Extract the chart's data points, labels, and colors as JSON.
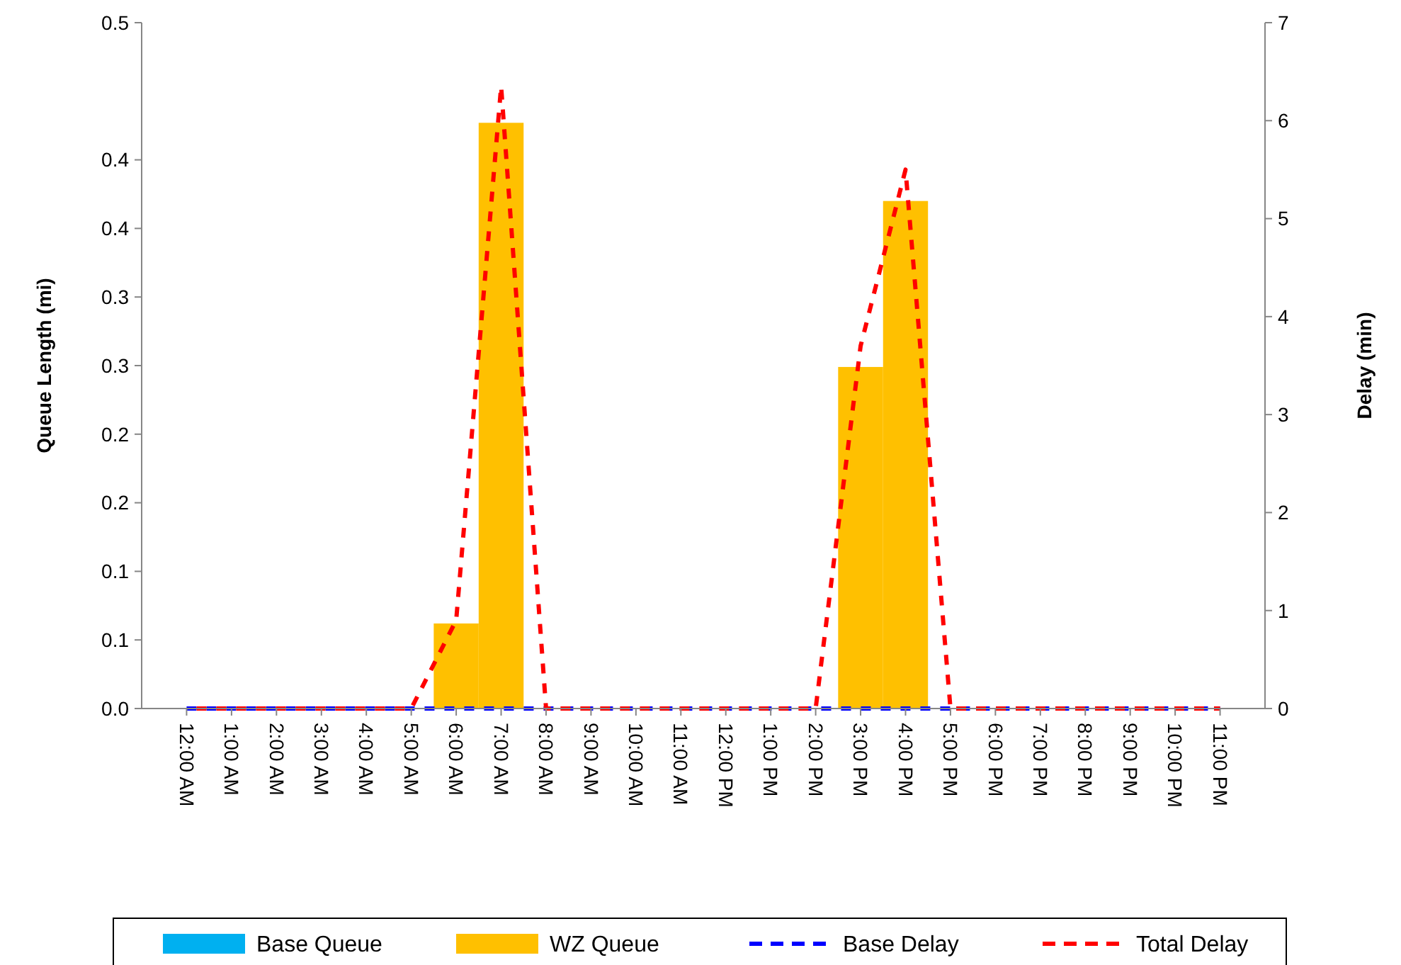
{
  "chart_data": {
    "type": "bar",
    "xlabel": null,
    "ylabel": "Queue Length (mi)",
    "y2label": "Delay (min)",
    "categories": [
      "12:00 AM",
      "1:00 AM",
      "2:00 AM",
      "3:00 AM",
      "4:00 AM",
      "5:00 AM",
      "6:00 AM",
      "7:00 AM",
      "8:00 AM",
      "9:00 AM",
      "10:00 AM",
      "11:00 AM",
      "12:00 PM",
      "1:00 PM",
      "2:00 PM",
      "3:00 PM",
      "4:00 PM",
      "5:00 PM",
      "6:00 PM",
      "7:00 PM",
      "8:00 PM",
      "9:00 PM",
      "10:00 PM",
      "11:00 PM"
    ],
    "series": [
      {
        "name": "Base Queue",
        "color": "#00b0f0",
        "values": [
          0,
          0,
          0,
          0,
          0,
          0,
          0,
          0,
          0,
          0,
          0,
          0,
          0,
          0,
          0,
          0,
          0,
          0,
          0,
          0,
          0,
          0,
          0,
          0
        ]
      },
      {
        "name": "WZ Queue",
        "color": "#ffc000",
        "values": [
          0,
          0,
          0,
          0,
          0,
          0,
          0.062,
          0.427,
          0,
          0,
          0,
          0,
          0,
          0,
          0,
          0.249,
          0.37,
          0,
          0,
          0,
          0,
          0,
          0,
          0
        ]
      },
      {
        "name": "Base Delay",
        "type": "line",
        "axis": "y2",
        "line_style": "dashed",
        "color": "#0000ff",
        "values": [
          0,
          0,
          0,
          0,
          0,
          0,
          0,
          0,
          0,
          0,
          0,
          0,
          0,
          0,
          0,
          0,
          0,
          0,
          0,
          0,
          0,
          0,
          0,
          0
        ]
      },
      {
        "name": "Total Delay",
        "type": "line",
        "axis": "y2",
        "line_style": "dashed",
        "color": "#ff0000",
        "values": [
          0,
          0,
          0,
          0,
          0,
          0,
          0.9,
          6.35,
          0,
          0,
          0,
          0,
          0,
          0,
          0,
          3.7,
          5.5,
          0,
          0,
          0,
          0,
          0,
          0,
          0
        ]
      }
    ],
    "ylim": [
      0,
      0.5
    ],
    "yticks": [
      {
        "value": 0,
        "label": "0.0"
      },
      {
        "value": 0.05,
        "label": "0.1"
      },
      {
        "value": 0.1,
        "label": "0.1"
      },
      {
        "value": 0.15,
        "label": "0.2"
      },
      {
        "value": 0.2,
        "label": "0.2"
      },
      {
        "value": 0.25,
        "label": "0.3"
      },
      {
        "value": 0.3,
        "label": "0.3"
      },
      {
        "value": 0.35,
        "label": "0.4"
      },
      {
        "value": 0.4,
        "label": "0.4"
      },
      0.5
    ],
    "y2lim": [
      0,
      7
    ],
    "y2ticks": [
      0,
      1,
      2,
      3,
      4,
      5,
      6,
      7
    ],
    "grid": false,
    "legend": "bottom",
    "marker": "none"
  }
}
